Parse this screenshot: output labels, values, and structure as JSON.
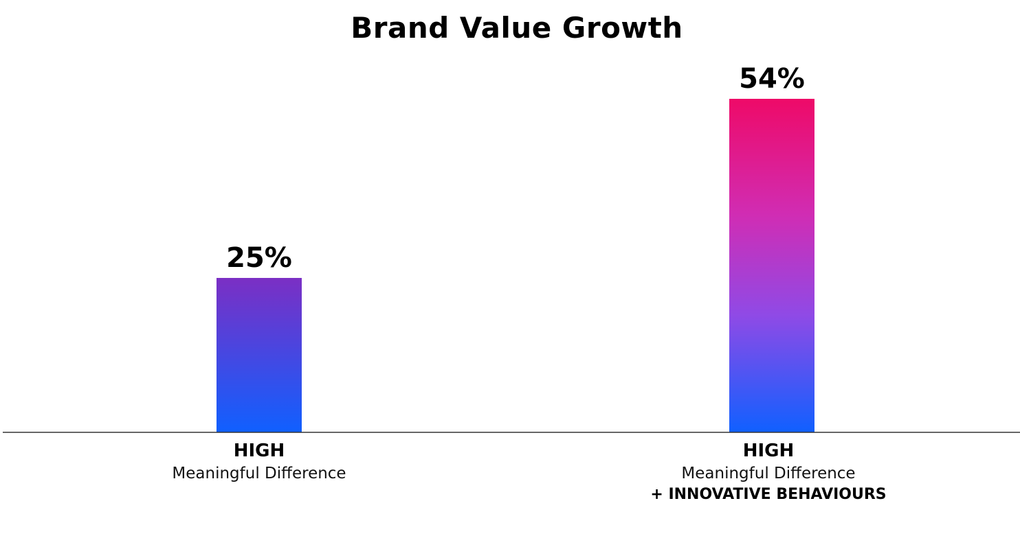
{
  "chart_data": {
    "type": "bar",
    "title": "Brand Value Growth",
    "categories": [
      {
        "main": "HIGH",
        "sub": "Meaningful Difference",
        "extra": ""
      },
      {
        "main": "HIGH",
        "sub": "Meaningful Difference",
        "extra": "+ INNOVATIVE BEHAVIOURS"
      }
    ],
    "values": [
      25,
      54
    ],
    "value_labels": [
      "25%",
      "54%"
    ],
    "unit": "%",
    "ylim": [
      0,
      60
    ],
    "grid": false,
    "legend": "none",
    "bar_colors": [
      {
        "top": "#7b2fc4",
        "bottom": "#1060ff"
      },
      {
        "top": "#ee0a68",
        "bottom": "#1060ff"
      }
    ],
    "axis_color": "#333333"
  }
}
